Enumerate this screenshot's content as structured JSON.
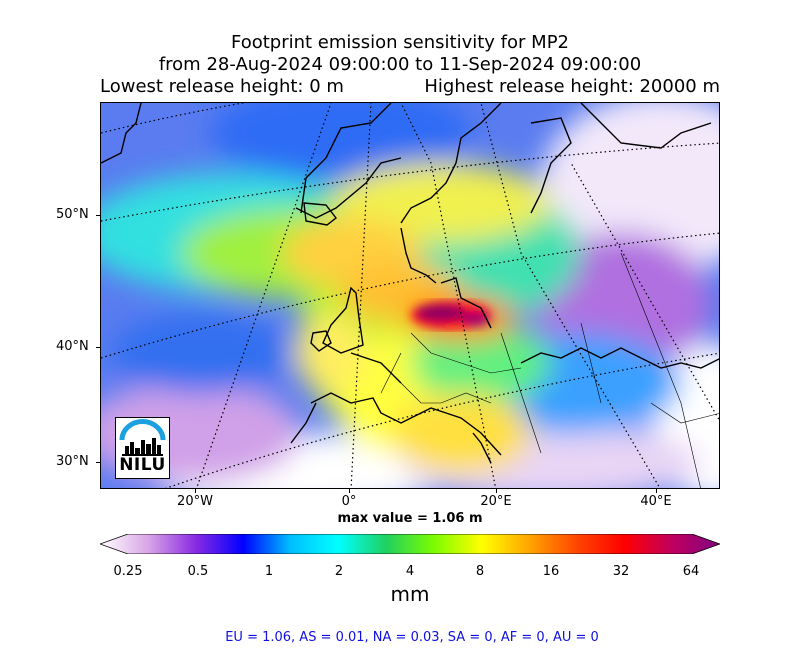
{
  "title": {
    "line1": "Footprint emission sensitivity for MP2",
    "line2": "from 28-Aug-2024 09:00:00 to 11-Sep-2024 09:00:00",
    "lowest": "Lowest release height: 0 m",
    "highest": "Highest release height: 20000 m"
  },
  "axes": {
    "lat_labels": [
      "50°N",
      "40°N",
      "30°N"
    ],
    "lon_labels": [
      "20°W",
      "0°",
      "20°E",
      "40°E"
    ]
  },
  "max_value": "max value = 1.06 m",
  "colorbar": {
    "ticks": [
      "0.25",
      "0.5",
      "1",
      "2",
      "4",
      "8",
      "16",
      "32",
      "64"
    ],
    "unit": "mm",
    "colors": [
      "#ffffff",
      "#d9a6e6",
      "#8a2be2",
      "#0000ff",
      "#00bfff",
      "#00ffff",
      "#20d060",
      "#7cfc00",
      "#ffff00",
      "#ffa500",
      "#ff4500",
      "#ff0000",
      "#c00060",
      "#800080"
    ]
  },
  "logo": {
    "text": "NILU"
  },
  "region_stats": "EU = 1.06,  AS = 0.01,  NA = 0.03,  SA = 0,  AF = 0,  AU = 0"
}
